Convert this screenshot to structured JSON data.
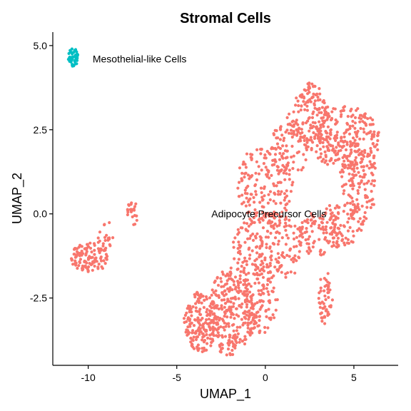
{
  "chart_data": {
    "type": "scatter",
    "title": "Stromal Cells",
    "xlabel": "UMAP_1",
    "ylabel": "UMAP_2",
    "xlim": [
      -12,
      7.5
    ],
    "ylim": [
      -4.5,
      5.4
    ],
    "x_ticks": [
      -10,
      -5,
      0,
      5
    ],
    "x_tick_labels": [
      "-10",
      "-5",
      "0",
      "5"
    ],
    "y_ticks": [
      -2.5,
      0.0,
      2.5,
      5.0
    ],
    "y_tick_labels": [
      "-2.5",
      "0.0",
      "2.5",
      "5.0"
    ],
    "grid": false,
    "legend": "none",
    "series": [
      {
        "color": "#F8766D",
        "label": "Adipocyte Precursor Cells",
        "label_pos": [
          0.2,
          0.0
        ],
        "regions": [
          {
            "kind": "ellipse",
            "cx": -9.9,
            "cy": -1.3,
            "rx": 1.1,
            "ry": 0.45,
            "n": 110
          },
          {
            "kind": "ellipse",
            "cx": -9.0,
            "cy": -0.6,
            "rx": 0.6,
            "ry": 0.5,
            "n": 20
          },
          {
            "kind": "ellipse",
            "cx": -7.5,
            "cy": 0.0,
            "rx": 0.45,
            "ry": 0.35,
            "n": 22
          },
          {
            "kind": "ellipse",
            "cx": -3.6,
            "cy": -3.2,
            "rx": 1.0,
            "ry": 0.9,
            "n": 180
          },
          {
            "kind": "ellipse",
            "cx": -1.8,
            "cy": -2.8,
            "rx": 1.4,
            "ry": 1.2,
            "n": 240
          },
          {
            "kind": "ellipse",
            "cx": -0.3,
            "cy": -2.5,
            "rx": 1.0,
            "ry": 1.1,
            "n": 110
          },
          {
            "kind": "ellipse",
            "cx": -2.0,
            "cy": -3.9,
            "rx": 0.7,
            "ry": 0.3,
            "n": 30
          },
          {
            "kind": "ellipse",
            "cx": 0.3,
            "cy": -1.0,
            "rx": 2.2,
            "ry": 1.0,
            "n": 220
          },
          {
            "kind": "ellipse",
            "cx": 0.0,
            "cy": 0.9,
            "rx": 1.6,
            "ry": 1.2,
            "n": 170
          },
          {
            "kind": "ellipse",
            "cx": 1.3,
            "cy": 1.9,
            "rx": 1.2,
            "ry": 0.8,
            "n": 80
          },
          {
            "kind": "ellipse",
            "cx": 2.5,
            "cy": 2.8,
            "rx": 1.3,
            "ry": 0.8,
            "n": 120
          },
          {
            "kind": "ellipse",
            "cx": 4.5,
            "cy": 2.2,
            "rx": 2.0,
            "ry": 1.0,
            "n": 260
          },
          {
            "kind": "ellipse",
            "cx": 5.3,
            "cy": 0.9,
            "rx": 1.0,
            "ry": 1.2,
            "n": 120
          },
          {
            "kind": "ellipse",
            "cx": 4.3,
            "cy": -0.3,
            "rx": 1.3,
            "ry": 0.7,
            "n": 90
          },
          {
            "kind": "ellipse",
            "cx": 3.1,
            "cy": -0.6,
            "rx": 1.2,
            "ry": 0.7,
            "n": 70
          },
          {
            "kind": "ellipse",
            "cx": 3.4,
            "cy": -2.5,
            "rx": 0.4,
            "ry": 0.8,
            "n": 50
          },
          {
            "kind": "ellipse",
            "cx": 2.6,
            "cy": 3.6,
            "rx": 0.5,
            "ry": 0.3,
            "n": 25
          }
        ]
      },
      {
        "color": "#00BFC4",
        "label": "Mesothelial-like Cells",
        "label_pos": [
          -7.1,
          4.6
        ],
        "regions": [
          {
            "kind": "ellipse",
            "cx": -10.85,
            "cy": 4.65,
            "rx": 0.3,
            "ry": 0.28,
            "n": 45
          }
        ]
      }
    ]
  }
}
